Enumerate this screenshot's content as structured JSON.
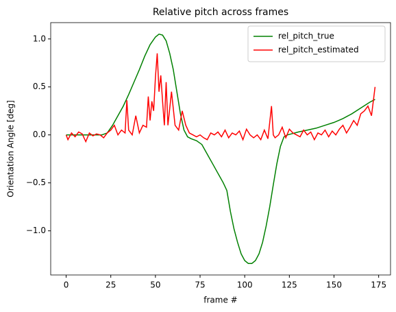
{
  "chart_data": {
    "type": "line",
    "title": "Relative pitch across frames",
    "x_label": "frame #",
    "y_label": "Orientation Angle [deg]",
    "xlim": [
      -8.65,
      181.65
    ],
    "xticks": [
      0,
      25,
      50,
      75,
      100,
      125,
      150,
      175
    ],
    "ylim": [
      -1.46,
      1.17
    ],
    "yticks": [
      {
        "value": -1.0,
        "label": "−1.0"
      },
      {
        "value": -0.5,
        "label": "−0.5"
      },
      {
        "value": 0.0,
        "label": "0.0"
      },
      {
        "value": 0.5,
        "label": "0.5"
      },
      {
        "value": 1.0,
        "label": "1.0"
      }
    ],
    "legend": "upper right",
    "series": [
      {
        "name": "rel_pitch_true",
        "color": "#008000",
        "x": [
          0,
          5,
          10,
          15,
          20,
          23,
          26,
          29,
          32,
          35,
          38,
          41,
          44,
          47,
          50,
          52,
          54,
          56,
          58,
          60,
          62,
          64,
          66,
          68,
          70,
          73,
          76,
          79,
          82,
          85,
          88,
          90,
          92,
          94,
          96,
          98,
          100,
          102,
          104,
          106,
          108,
          110,
          112,
          114,
          116,
          118,
          120,
          122,
          124,
          126,
          130,
          135,
          140,
          145,
          150,
          155,
          160,
          165,
          170,
          173
        ],
        "values": [
          0,
          0,
          0,
          0,
          0,
          0.02,
          0.1,
          0.2,
          0.3,
          0.42,
          0.55,
          0.68,
          0.82,
          0.94,
          1.02,
          1.05,
          1.04,
          0.98,
          0.85,
          0.68,
          0.45,
          0.22,
          0.05,
          -0.02,
          -0.04,
          -0.06,
          -0.1,
          -0.2,
          -0.3,
          -0.4,
          -0.5,
          -0.58,
          -0.8,
          -0.98,
          -1.12,
          -1.24,
          -1.31,
          -1.34,
          -1.34,
          -1.31,
          -1.24,
          -1.12,
          -0.95,
          -0.75,
          -0.52,
          -0.3,
          -0.12,
          -0.02,
          0.0,
          0.01,
          0.03,
          0.05,
          0.07,
          0.1,
          0.13,
          0.17,
          0.22,
          0.28,
          0.34,
          0.37
        ]
      },
      {
        "name": "rel_pitch_estimated",
        "color": "#ff0000",
        "x": [
          0,
          1,
          3,
          5,
          7,
          9,
          11,
          13,
          15,
          17,
          19,
          21,
          23,
          25,
          27,
          29,
          31,
          33,
          34,
          35,
          37,
          39,
          41,
          43,
          45,
          46,
          47,
          48,
          49,
          50,
          51,
          52,
          53,
          54,
          55,
          56,
          57,
          59,
          61,
          63,
          65,
          67,
          69,
          71,
          73,
          75,
          77,
          79,
          81,
          83,
          85,
          87,
          89,
          91,
          93,
          95,
          97,
          99,
          101,
          103,
          105,
          107,
          109,
          111,
          113,
          115,
          116,
          117,
          119,
          121,
          123,
          125,
          127,
          129,
          131,
          133,
          135,
          137,
          139,
          141,
          143,
          145,
          147,
          149,
          151,
          153,
          155,
          157,
          159,
          161,
          163,
          165,
          167,
          169,
          171,
          172,
          173
        ],
        "values": [
          0,
          -0.05,
          0.02,
          -0.02,
          0.03,
          0.01,
          -0.07,
          0.02,
          -0.01,
          0.01,
          0.0,
          -0.03,
          0.02,
          0.05,
          0.1,
          0.0,
          0.05,
          0.02,
          0.36,
          0.05,
          0.0,
          0.2,
          0.02,
          0.1,
          0.08,
          0.4,
          0.15,
          0.35,
          0.25,
          0.6,
          0.85,
          0.45,
          0.62,
          0.35,
          0.1,
          0.55,
          0.1,
          0.45,
          0.1,
          0.05,
          0.25,
          0.1,
          0.02,
          0.0,
          -0.02,
          0.0,
          -0.03,
          -0.05,
          0.02,
          0.0,
          0.03,
          -0.02,
          0.05,
          -0.03,
          0.02,
          0.0,
          0.04,
          -0.05,
          0.06,
          0.0,
          -0.03,
          0.0,
          -0.05,
          0.05,
          -0.04,
          0.3,
          0.0,
          -0.03,
          0.0,
          0.08,
          -0.03,
          0.06,
          0.02,
          0.0,
          -0.02,
          0.05,
          0.0,
          0.03,
          -0.05,
          0.02,
          0.0,
          0.05,
          -0.02,
          0.04,
          0.0,
          0.06,
          0.1,
          0.02,
          0.08,
          0.15,
          0.1,
          0.22,
          0.25,
          0.3,
          0.2,
          0.35,
          0.5
        ]
      }
    ]
  }
}
